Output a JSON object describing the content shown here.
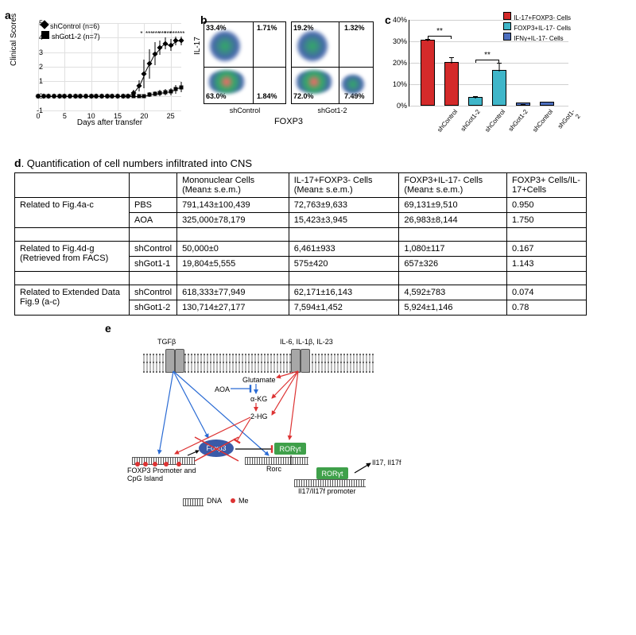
{
  "panel_a": {
    "label": "a",
    "type": "line-scatter",
    "ylabel": "Clinical Scores",
    "xlabel": "Days after transfer",
    "ylim": [
      -1,
      5
    ],
    "yticks": [
      -1,
      0,
      1,
      2,
      3,
      4,
      5
    ],
    "xlim": [
      0,
      27
    ],
    "xticks": [
      0,
      5,
      10,
      15,
      20,
      25
    ],
    "gridline_color": "#e0e0e0",
    "legend": [
      {
        "label": "shControl (n=6)",
        "marker": "diamond"
      },
      {
        "label": "shGot1-2 (n=7)",
        "marker": "square"
      }
    ],
    "series_control": {
      "x": [
        0,
        1,
        2,
        3,
        4,
        5,
        6,
        7,
        8,
        9,
        10,
        11,
        12,
        13,
        14,
        15,
        16,
        17,
        18,
        19,
        20,
        21,
        22,
        23,
        24,
        25,
        26,
        27
      ],
      "y": [
        0,
        0,
        0,
        0,
        0,
        0,
        0,
        0,
        0,
        0,
        0,
        0,
        0,
        0,
        0,
        0,
        0,
        0,
        0.2,
        0.7,
        1.5,
        2.2,
        2.9,
        3.3,
        3.6,
        3.5,
        3.8,
        3.8
      ],
      "err": [
        0,
        0,
        0,
        0,
        0,
        0,
        0,
        0,
        0,
        0,
        0,
        0,
        0,
        0,
        0,
        0,
        0,
        0,
        0.2,
        0.4,
        1.0,
        1.0,
        0.8,
        0.5,
        0.4,
        0.4,
        0.3,
        0.3
      ]
    },
    "series_got": {
      "x": [
        0,
        1,
        2,
        3,
        4,
        5,
        6,
        7,
        8,
        9,
        10,
        11,
        12,
        13,
        14,
        15,
        16,
        17,
        18,
        19,
        20,
        21,
        22,
        23,
        24,
        25,
        26,
        27
      ],
      "y": [
        0,
        0,
        0,
        0,
        0,
        0,
        0,
        0,
        0,
        0,
        0,
        0,
        0,
        0,
        0,
        0,
        0,
        0,
        0,
        0,
        0,
        0.1,
        0.15,
        0.2,
        0.25,
        0.3,
        0.45,
        0.6
      ],
      "err": [
        0,
        0,
        0,
        0,
        0,
        0,
        0,
        0,
        0,
        0,
        0,
        0,
        0,
        0,
        0,
        0,
        0,
        0,
        0,
        0,
        0,
        0.15,
        0.15,
        0.2,
        0.2,
        0.25,
        0.3,
        0.35
      ]
    },
    "significance": [
      {
        "x": 20,
        "label": "*"
      },
      {
        "x": 21,
        "label": "***"
      },
      {
        "x": 22.3,
        "label": "***"
      },
      {
        "x": 23.5,
        "label": "***"
      },
      {
        "x": 24.5,
        "label": "***"
      },
      {
        "x": 25.6,
        "label": "***"
      },
      {
        "x": 27,
        "label": "***"
      }
    ]
  },
  "panel_b": {
    "label": "b",
    "ylabel": "IL-17",
    "xlabel": "FOXP3",
    "plots": [
      {
        "caption": "shControl",
        "cross_h": 0.55,
        "cross_v": 0.6,
        "quads": {
          "ul": "33.4%",
          "ur": "1.71%",
          "ll": "63.0%",
          "lr": "1.84%"
        }
      },
      {
        "caption": "shGot1-2",
        "cross_h": 0.55,
        "cross_v": 0.58,
        "quads": {
          "ul": "19.2%",
          "ur": "1.32%",
          "ll": "72.0%",
          "lr": "7.49%"
        }
      }
    ]
  },
  "panel_c": {
    "label": "c",
    "type": "bar",
    "ylim": [
      0,
      40
    ],
    "yticks": [
      0,
      10,
      20,
      30,
      40
    ],
    "ytick_suffix": "%",
    "legend": [
      {
        "label": "IL-17+FOXP3- Cells",
        "color": "#d42a2a"
      },
      {
        "label": "FOXP3+IL-17- Cells",
        "color": "#3fb6c9"
      },
      {
        "label": "IFNγ+IL-17- Cells",
        "color": "#4d6fbf"
      }
    ],
    "bars": [
      {
        "x": 0,
        "label": "shControl",
        "value": 30.0,
        "err": 1.2,
        "color": "#d42a2a"
      },
      {
        "x": 1,
        "label": "shGot1-2",
        "value": 19.5,
        "err": 3.0,
        "color": "#d42a2a"
      },
      {
        "x": 2,
        "label": "shControl",
        "value": 3.2,
        "err": 1.3,
        "color": "#3fb6c9"
      },
      {
        "x": 3,
        "label": "shGot1-2",
        "value": 15.8,
        "err": 4.2,
        "color": "#3fb6c9"
      },
      {
        "x": 4,
        "label": "shControl",
        "value": 0.6,
        "err": 0.2,
        "color": "#4d6fbf"
      },
      {
        "x": 5,
        "label": "shGot1-2",
        "value": 1.3,
        "err": 0.4,
        "color": "#4d6fbf"
      }
    ],
    "significance": [
      {
        "from": 0,
        "to": 1,
        "label": "**",
        "y": 33
      },
      {
        "from": 2,
        "to": 3,
        "label": "**",
        "y": 22
      }
    ]
  },
  "panel_d": {
    "label": "d",
    "title": "Quantification of cell numbers infiltrated into CNS",
    "columns": [
      "",
      "",
      "Mononuclear Cells (Mean± s.e.m.)",
      "IL-17+FOXP3- Cells (Mean± s.e.m.)",
      "FOXP3+IL-17- Cells (Mean± s.e.m.)",
      "FOXP3+ Cells/IL-17+Cells"
    ],
    "groups": [
      {
        "span": "Related to Fig.4a-c",
        "rows": [
          [
            "PBS",
            "791,143±100,439",
            "72,763±9,633",
            "69,131±9,510",
            "0.950"
          ],
          [
            "AOA",
            "325,000±78,179",
            "15,423±3,945",
            "26,983±8,144",
            "1.750"
          ]
        ]
      },
      {
        "span": "Related to Fig.4d-g (Retrieved from  FACS)",
        "rows": [
          [
            "shControl",
            "50,000±0",
            "6,461±933",
            "1,080±117",
            "0.167"
          ],
          [
            "shGot1-1",
            "19,804±5,555",
            "575±420",
            "657±326",
            "1.143"
          ]
        ]
      },
      {
        "span": "Related to Extended Data Fig.9 (a-c)",
        "rows": [
          [
            "shControl",
            "618,333±77,949",
            "62,171±16,143",
            "4,592±783",
            "0.074"
          ],
          [
            "shGot1-2",
            "130,714±27,177",
            "7,594±1,452",
            "5,924±1,146",
            "0.78"
          ]
        ]
      }
    ]
  },
  "panel_e": {
    "label": "e",
    "top_labels": {
      "left": "TGFβ",
      "right": "IL-6, IL-1β, IL-23"
    },
    "nodes": {
      "glutamate": "Glutamate",
      "aoa": "AOA",
      "akg": "α-KG",
      "hg2": "2-HG",
      "foxp3": "Foxp3",
      "ror": "RORγt",
      "rorc": "Rorc",
      "il17": "Il17, Il17f",
      "prom_foxp3": "FOXP3 Promoter and CpG Island",
      "prom_il17": "Il17/Il17f promoter",
      "dna": "DNA",
      "me": "Me"
    }
  }
}
